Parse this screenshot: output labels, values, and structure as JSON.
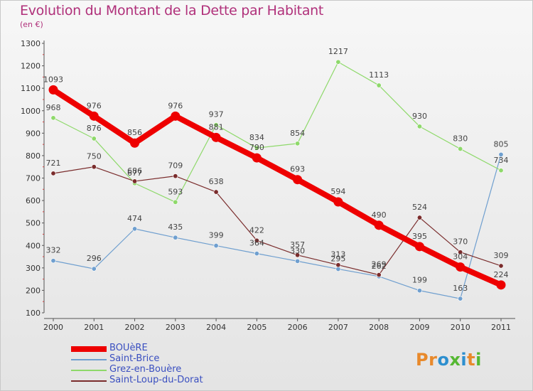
{
  "title": "Evolution du Montant de la Dette par Habitant",
  "unit": "(en €)",
  "logo": {
    "letters": [
      "P",
      "r",
      "o",
      "x",
      "i",
      "t",
      "i"
    ],
    "colors": [
      "#e8892b",
      "#e8892b",
      "#2d8fcf",
      "#55b832",
      "#2d8fcf",
      "#e8892b",
      "#55b832"
    ]
  },
  "chart_data": {
    "type": "line",
    "title": "Evolution du Montant de la Dette par Habitant",
    "ylabel": "(en €)",
    "ylim": [
      100,
      1300
    ],
    "yticks": [
      100,
      200,
      300,
      400,
      500,
      600,
      700,
      800,
      900,
      1000,
      1100,
      1200,
      1300
    ],
    "x": [
      "2000",
      "2001",
      "2002",
      "2003",
      "2004",
      "2005",
      "2006",
      "2007",
      "2008",
      "2009",
      "2010",
      "2011"
    ],
    "grid": false,
    "legend_position": "bottom-left",
    "series": [
      {
        "name": "BOUèRE",
        "color": "#ee0000",
        "values": [
          1093,
          976,
          856,
          976,
          881,
          790,
          693,
          594,
          490,
          395,
          304,
          224
        ]
      },
      {
        "name": "Saint-Brice",
        "color": "#6f9fcf",
        "values": [
          332,
          296,
          474,
          435,
          399,
          364,
          330,
          295,
          262,
          199,
          163,
          805
        ]
      },
      {
        "name": "Grez-en-Bouère",
        "color": "#8ed96a",
        "values": [
          968,
          876,
          677,
          593,
          937,
          834,
          854,
          1217,
          1113,
          930,
          830,
          734
        ]
      },
      {
        "name": "Saint-Loup-du-Dorat",
        "color": "#7a2c2c",
        "values": [
          721,
          750,
          686,
          709,
          638,
          422,
          357,
          313,
          269,
          524,
          370,
          309
        ]
      }
    ]
  }
}
